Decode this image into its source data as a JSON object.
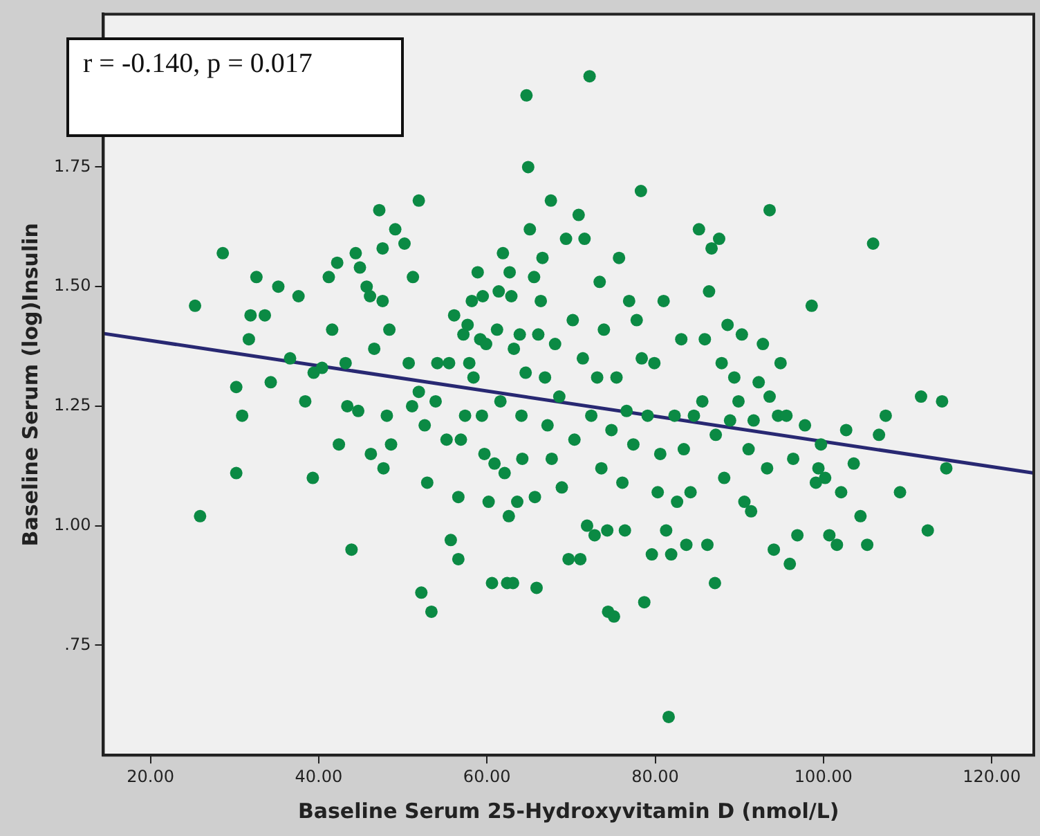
{
  "chart_data": {
    "type": "scatter",
    "xlabel": "Baseline Serum 25-Hydroxyvitamin D (nmol/L)",
    "ylabel": "Baseline Serum (log)Insulin",
    "annotations": [
      "r = -0.140, p = 0.017"
    ],
    "xlim": [
      14.4,
      125
    ],
    "ylim": [
      0.52,
      2.07
    ],
    "xticks": [
      {
        "value": 20,
        "label": "20.00"
      },
      {
        "value": 40,
        "label": "40.00"
      },
      {
        "value": 60,
        "label": "60.00"
      },
      {
        "value": 80,
        "label": "80.00"
      },
      {
        "value": 100,
        "label": "100.00"
      },
      {
        "value": 120,
        "label": "120.00"
      }
    ],
    "yticks": [
      {
        "value": 0.75,
        "label": ".75"
      },
      {
        "value": 1,
        "label": "1.00"
      },
      {
        "value": 1.25,
        "label": "1.25"
      },
      {
        "value": 1.5,
        "label": "1.50"
      },
      {
        "value": 1.75,
        "label": "1.75"
      }
    ],
    "grid": false,
    "legend": false,
    "marker": "circle",
    "series": [
      {
        "color": "#0b8a44",
        "x": [
          25.3,
          25.9,
          28.6,
          30.2,
          30.2,
          30.9,
          31.7,
          31.9,
          32.6,
          33.6,
          34.3,
          35.2,
          36.6,
          37.6,
          38.4,
          39.3,
          39.4,
          40.4,
          41.2,
          41.6,
          42.2,
          42.4,
          43.2,
          43.4,
          43.9,
          44.4,
          44.7,
          44.9,
          45.7,
          46.1,
          46.2,
          46.6,
          47.2,
          47.6,
          47.6,
          47.7,
          48.1,
          48.4,
          48.6,
          49.1,
          50.2,
          50.7,
          51.1,
          51.2,
          51.9,
          51.9,
          52.2,
          52.6,
          52.9,
          53.4,
          53.9,
          54.1,
          55.2,
          55.5,
          55.7,
          56.1,
          56.6,
          56.6,
          56.9,
          57.2,
          57.4,
          57.7,
          57.9,
          58.2,
          58.4,
          58.9,
          59.2,
          59.4,
          59.5,
          59.7,
          59.9,
          60.2,
          60.6,
          60.9,
          61.2,
          61.4,
          61.6,
          61.9,
          62.1,
          62.4,
          62.6,
          62.7,
          62.9,
          63.1,
          63.2,
          63.6,
          63.9,
          64.1,
          64.2,
          64.6,
          64.7,
          64.9,
          65.1,
          65.6,
          65.7,
          65.9,
          66.1,
          66.4,
          66.6,
          66.9,
          67.2,
          67.6,
          67.7,
          68.1,
          68.6,
          68.9,
          69.4,
          69.7,
          70.2,
          70.4,
          70.9,
          71.1,
          71.4,
          71.6,
          71.9,
          72.2,
          72.4,
          72.8,
          73.1,
          73.4,
          73.6,
          73.9,
          74.3,
          74.4,
          74.8,
          75.1,
          75.4,
          75.7,
          76.1,
          76.4,
          76.6,
          76.9,
          77.4,
          77.8,
          78.3,
          78.4,
          78.7,
          79.1,
          79.6,
          79.9,
          80.3,
          80.6,
          81.0,
          81.3,
          81.6,
          81.9,
          82.3,
          82.6,
          83.1,
          83.4,
          83.7,
          84.2,
          84.6,
          85.2,
          85.6,
          85.9,
          86.2,
          86.4,
          86.7,
          87.1,
          87.2,
          87.6,
          87.9,
          88.2,
          88.6,
          88.9,
          89.4,
          89.9,
          90.3,
          90.6,
          91.1,
          91.4,
          91.7,
          92.3,
          92.8,
          93.3,
          93.6,
          94.1,
          94.6,
          94.9,
          95.6,
          96.0,
          96.4,
          96.9,
          97.8,
          98.6,
          99.1,
          99.7,
          100.7,
          101.6,
          102.1,
          102.7,
          103.6,
          104.4,
          105.2,
          105.9,
          106.6,
          107.4,
          109.1,
          111.6,
          112.4,
          114.1,
          114.6,
          99.4,
          100.2,
          93.6
        ],
        "values": [
          1.46,
          1.02,
          1.57,
          1.29,
          1.11,
          1.23,
          1.39,
          1.44,
          1.52,
          1.44,
          1.3,
          1.5,
          1.35,
          1.48,
          1.26,
          1.1,
          1.32,
          1.33,
          1.52,
          1.41,
          1.55,
          1.17,
          1.34,
          1.25,
          0.95,
          1.57,
          1.24,
          1.54,
          1.5,
          1.48,
          1.15,
          1.37,
          1.66,
          1.58,
          1.47,
          1.12,
          1.23,
          1.41,
          1.17,
          1.62,
          1.59,
          1.34,
          1.25,
          1.52,
          1.68,
          1.28,
          0.86,
          1.21,
          1.09,
          0.82,
          1.26,
          1.34,
          1.18,
          1.34,
          0.97,
          1.44,
          0.93,
          1.06,
          1.18,
          1.4,
          1.23,
          1.42,
          1.34,
          1.47,
          1.31,
          1.53,
          1.39,
          1.23,
          1.48,
          1.15,
          1.38,
          1.05,
          0.88,
          1.13,
          1.41,
          1.49,
          1.26,
          1.57,
          1.11,
          0.88,
          1.02,
          1.53,
          1.48,
          0.88,
          1.37,
          1.05,
          1.4,
          1.23,
          1.14,
          1.32,
          1.9,
          1.75,
          1.62,
          1.52,
          1.06,
          0.87,
          1.4,
          1.47,
          1.56,
          1.31,
          1.21,
          1.68,
          1.14,
          1.38,
          1.27,
          1.08,
          1.6,
          0.93,
          1.43,
          1.18,
          1.65,
          0.93,
          1.35,
          1.6,
          1.0,
          1.94,
          1.23,
          0.98,
          1.31,
          1.51,
          1.12,
          1.41,
          0.99,
          0.82,
          1.2,
          0.81,
          1.31,
          1.56,
          1.09,
          0.99,
          1.24,
          1.47,
          1.17,
          1.43,
          1.7,
          1.35,
          0.84,
          1.23,
          0.94,
          1.34,
          1.07,
          1.15,
          1.47,
          0.99,
          0.6,
          0.94,
          1.23,
          1.05,
          1.39,
          1.16,
          0.96,
          1.07,
          1.23,
          1.62,
          1.26,
          1.39,
          0.96,
          1.49,
          1.58,
          0.88,
          1.19,
          1.6,
          1.34,
          1.1,
          1.42,
          1.22,
          1.31,
          1.26,
          1.4,
          1.05,
          1.16,
          1.03,
          1.22,
          1.3,
          1.38,
          1.12,
          1.66,
          0.95,
          1.23,
          1.34,
          1.23,
          0.92,
          1.14,
          0.98,
          1.21,
          1.46,
          1.09,
          1.17,
          0.98,
          0.96,
          1.07,
          1.2,
          1.13,
          1.02,
          0.96,
          1.59,
          1.19,
          1.23,
          1.07,
          1.27,
          0.99,
          1.26,
          1.12,
          1.12,
          1.1,
          1.27
        ]
      },
      {
        "type": "line",
        "color": "#282872",
        "x": [
          14.4,
          125
        ],
        "values": [
          1.402,
          1.11
        ],
        "marker": "none"
      }
    ]
  }
}
